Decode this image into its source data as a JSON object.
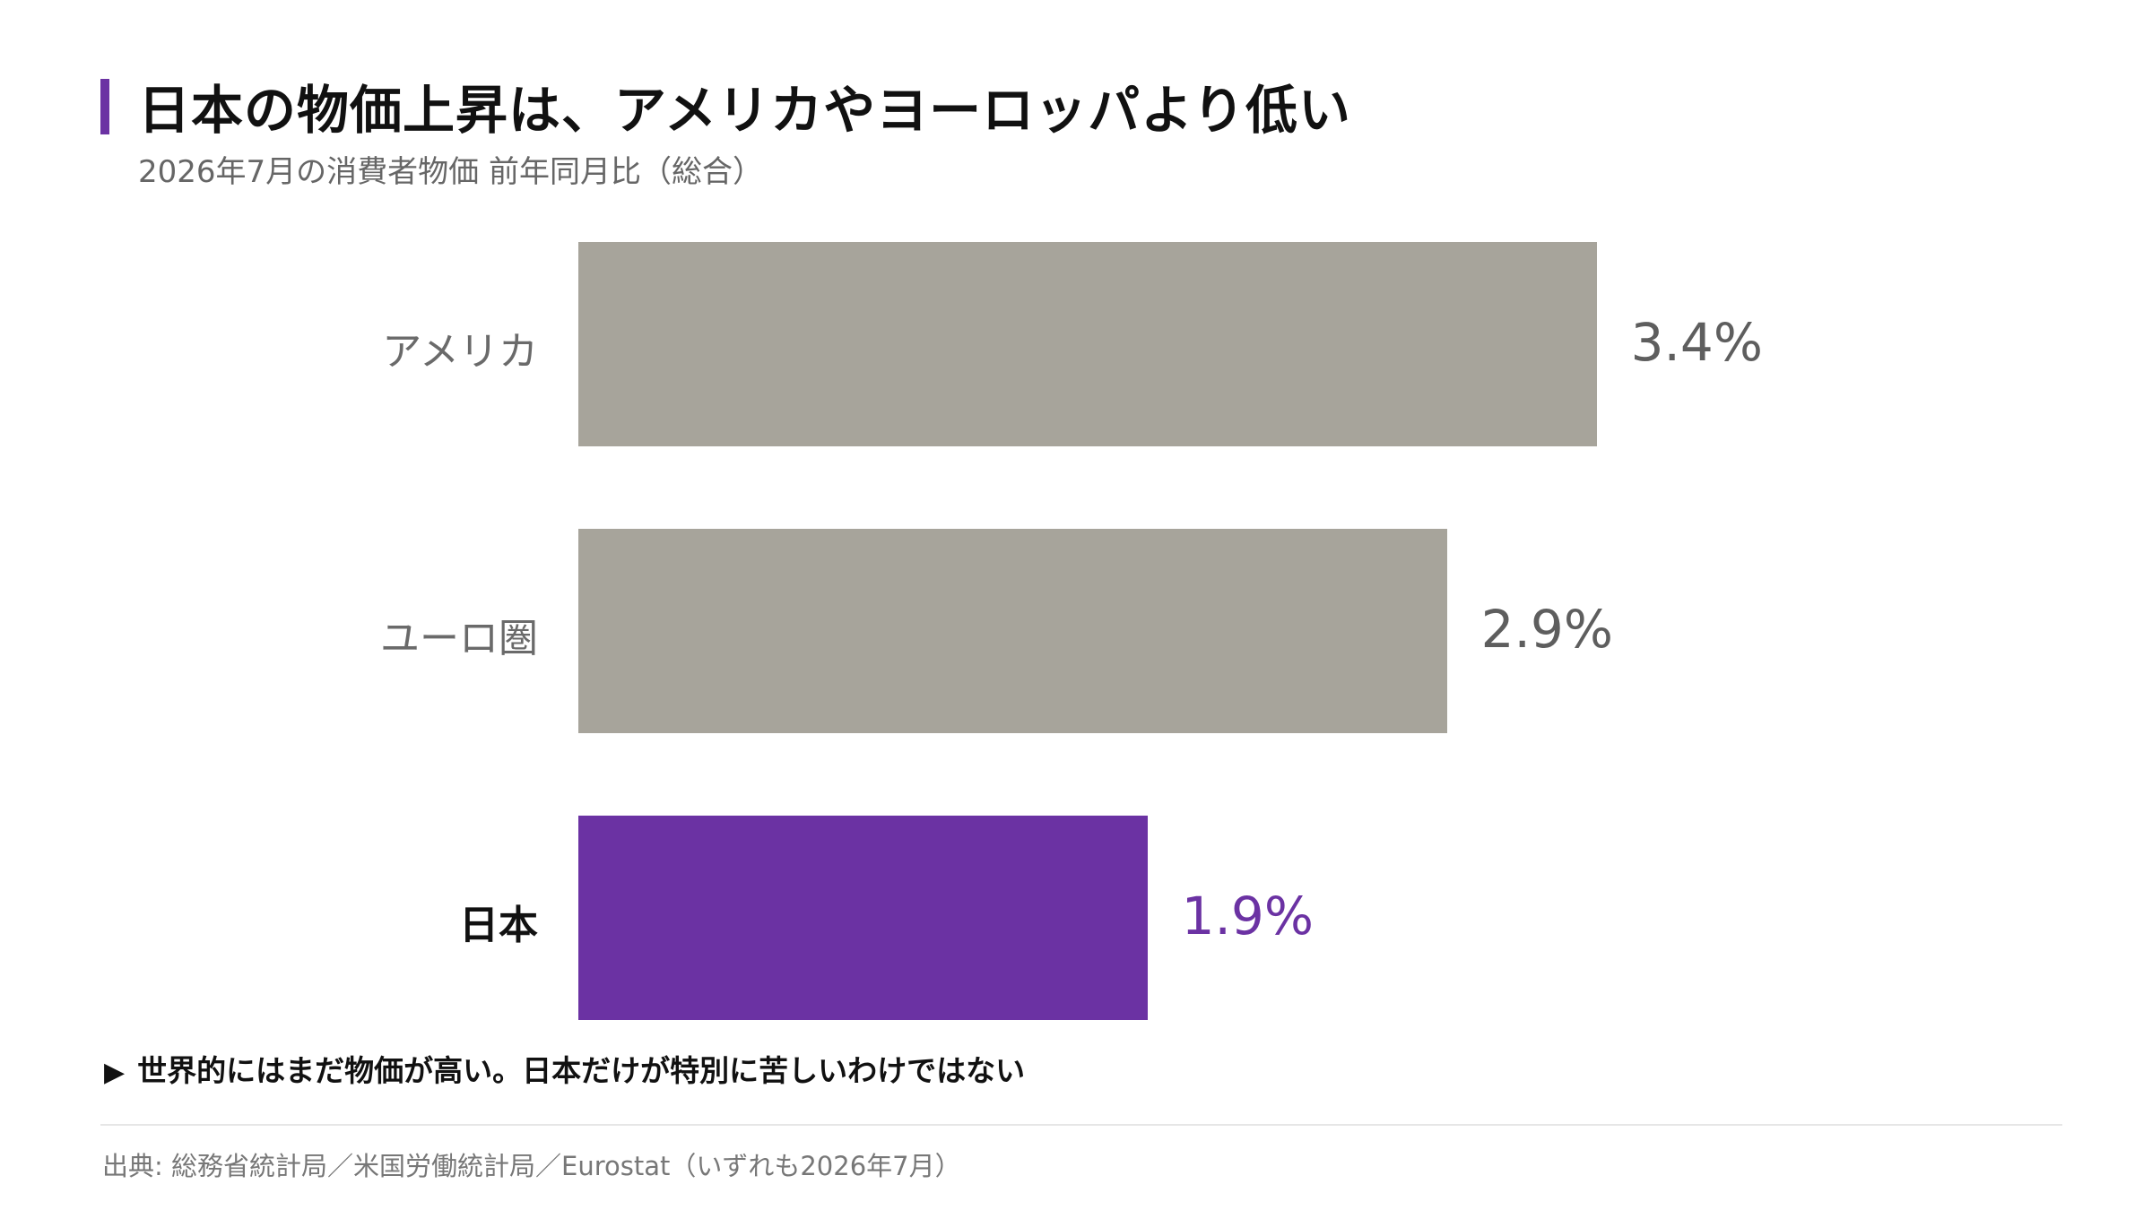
{
  "header": {
    "title": "日本の物価上昇は、アメリカやヨーロッパより低い",
    "subtitle": "2026年7月の消費者物価 前年同月比（総合）"
  },
  "chart_data": {
    "type": "bar",
    "orientation": "horizontal",
    "categories": [
      "アメリカ",
      "ユーロ圏",
      "日本"
    ],
    "values": [
      3.4,
      2.9,
      1.9
    ],
    "value_labels": [
      "3.4%",
      "2.9%",
      "1.9%"
    ],
    "unit": "%",
    "highlight_category": "日本",
    "colors": {
      "default": "#a7a49b",
      "highlight": "#6b32a3"
    },
    "grid": false,
    "legend": "none"
  },
  "note": {
    "arrow": "▶",
    "text": "世界的にはまだ物価が高い。日本だけが特別に苦しいわけではない"
  },
  "source": "出典: 総務省統計局／米国労働統計局／Eurostat（いずれも2026年7月）"
}
